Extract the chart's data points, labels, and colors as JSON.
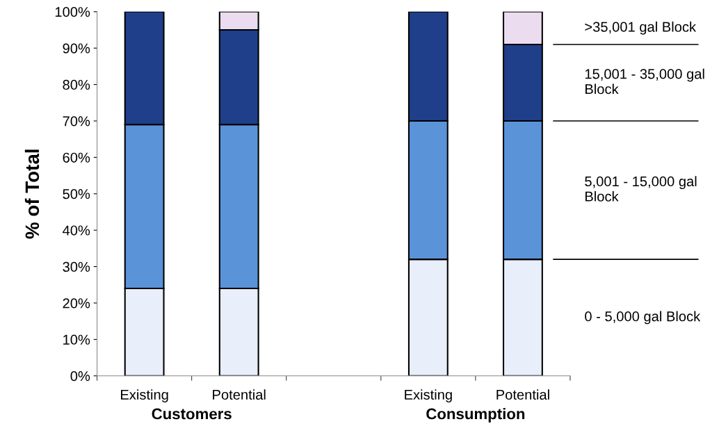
{
  "chart_data": {
    "type": "bar",
    "stacked": true,
    "ylabel": "% of Total",
    "categories": [
      "Existing",
      "Potential",
      null,
      "Existing",
      "Potential"
    ],
    "series": [
      {
        "name": "0 - 5,000 gal Block",
        "color": "#e8eefa",
        "values": [
          24,
          24,
          null,
          32,
          32
        ]
      },
      {
        "name": "5,001 - 15,000 gal Block",
        "color": "#5b93d9",
        "values": [
          45,
          45,
          null,
          38,
          38
        ]
      },
      {
        "name": "15,001 - 35,000 gal Block",
        "color": "#1f3f8a",
        "values": [
          31,
          26,
          null,
          30,
          21
        ]
      },
      {
        "name": ">35,001 gal Block",
        "color": "#ecdcef",
        "values": [
          0,
          5,
          null,
          0,
          9
        ]
      }
    ],
    "ylim": [
      0,
      100
    ],
    "yticks": [
      {
        "value": 0,
        "label": "0%"
      },
      {
        "value": 10,
        "label": "10%"
      },
      {
        "value": 20,
        "label": "20%"
      },
      {
        "value": 30,
        "label": "30%"
      },
      {
        "value": 40,
        "label": "40%"
      },
      {
        "value": 50,
        "label": "50%"
      },
      {
        "value": 60,
        "label": "60%"
      },
      {
        "value": 70,
        "label": "70%"
      },
      {
        "value": 80,
        "label": "80%"
      },
      {
        "value": 90,
        "label": "90%"
      },
      {
        "value": 100,
        "label": "100%"
      }
    ],
    "annotations": [
      "Customers",
      "Consumption"
    ],
    "grid": false,
    "legend": false
  }
}
